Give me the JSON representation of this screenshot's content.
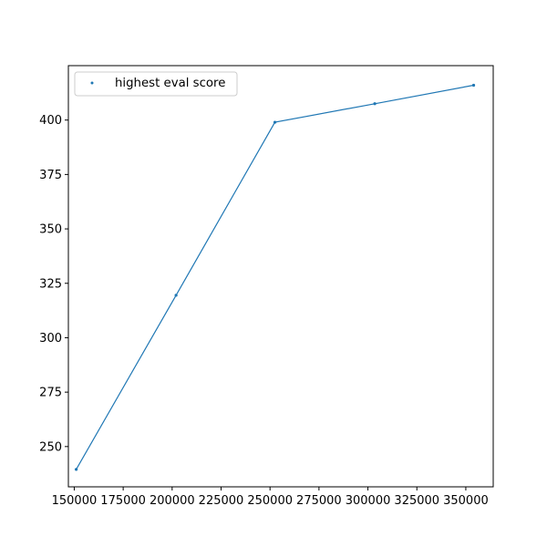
{
  "chart_data": {
    "type": "line",
    "series": [
      {
        "name": "highest eval score",
        "x": [
          151000,
          202000,
          252500,
          303500,
          354000
        ],
        "y": [
          239.5,
          319.5,
          399.0,
          407.5,
          416.0
        ]
      }
    ],
    "xlim": [
      147000,
      364000
    ],
    "ylim": [
      231.5,
      425.0
    ],
    "xticks": [
      150000,
      175000,
      200000,
      225000,
      250000,
      275000,
      300000,
      325000,
      350000
    ],
    "xtick_labels": [
      "150000",
      "175000",
      "200000",
      "225000",
      "250000",
      "275000",
      "300000",
      "325000",
      "350000"
    ],
    "yticks": [
      250,
      275,
      300,
      325,
      350,
      375,
      400
    ],
    "ytick_labels": [
      "250",
      "275",
      "300",
      "325",
      "350",
      "375",
      "400"
    ],
    "title": "",
    "xlabel": "",
    "ylabel": "",
    "grid": false,
    "legend": {
      "position": "top-left",
      "entries": [
        "highest eval score"
      ]
    },
    "colors": {
      "series": "#1f77b4",
      "axes": "#000000",
      "background": "#ffffff"
    }
  }
}
